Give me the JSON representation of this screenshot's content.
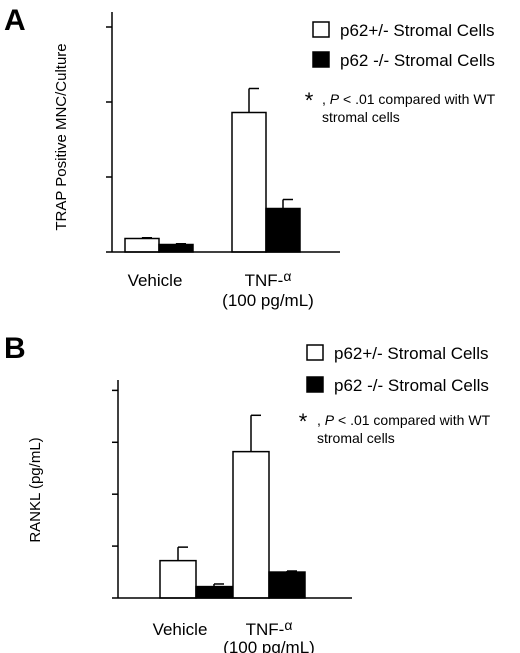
{
  "chart_data": [
    {
      "panel": "A",
      "type": "bar",
      "ylabel": "TRAP Positive MNC/Culture",
      "ylim": [
        0,
        160
      ],
      "yticks": [
        "0",
        "50",
        "100",
        "150"
      ],
      "ytick_values": [
        0,
        50,
        100,
        150
      ],
      "categories": [
        {
          "line1": "Vehicle",
          "line2": ""
        },
        {
          "line1": "TNF-",
          "greek": "α",
          "line2": "(100 pg/mL)"
        }
      ],
      "series": [
        {
          "name": "p62+/- Stromal Cells",
          "color": "#ffffff",
          "values": [
            9,
            93
          ],
          "errors": [
            0.5,
            16
          ]
        },
        {
          "name": "p62 -/- Stromal Cells",
          "color": "#000000",
          "values": [
            5,
            29
          ],
          "errors": [
            0.5,
            6
          ]
        }
      ],
      "significance": [
        {
          "category": 1,
          "series": 1,
          "mark": "*"
        }
      ],
      "note": {
        "star": "*",
        "sep": ", ",
        "p": "P",
        "rest": " < .01 compared with WT",
        "line2": "stromal cells"
      }
    },
    {
      "panel": "B",
      "type": "bar",
      "ylabel": "RANKL (pg/mL)",
      "ylim": [
        0,
        2100
      ],
      "yticks": [
        "0",
        "500",
        "1000",
        "1500",
        "2000"
      ],
      "ytick_values": [
        0,
        500,
        1000,
        1500,
        2000
      ],
      "categories": [
        {
          "line1": "Vehicle",
          "line2": ""
        },
        {
          "line1": "TNF-",
          "greek": "α",
          "line2": "(100 pg/mL)"
        }
      ],
      "series": [
        {
          "name": "p62+/- Stromal Cells",
          "color": "#ffffff",
          "values": [
            360,
            1410
          ],
          "errors": [
            130,
            350
          ]
        },
        {
          "name": "p62 -/- Stromal Cells",
          "color": "#000000",
          "values": [
            110,
            250
          ],
          "errors": [
            25,
            10
          ]
        }
      ],
      "significance": [
        {
          "category": 0,
          "series": 1,
          "mark": "*"
        },
        {
          "category": 1,
          "series": 1,
          "mark": "*"
        }
      ],
      "note": {
        "star": "*",
        "sep": ", ",
        "p": "P",
        "rest": " < .01 compared with WT",
        "line2": "stromal cells"
      }
    }
  ]
}
